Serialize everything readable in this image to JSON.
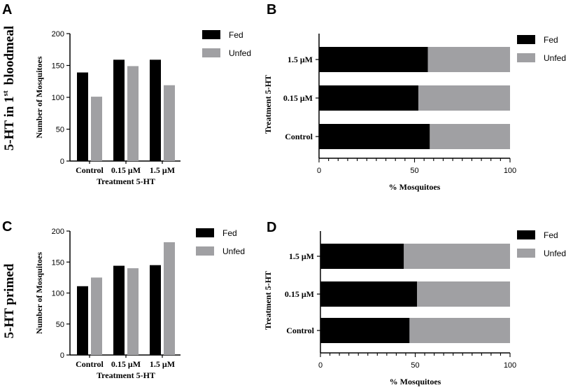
{
  "row_labels": {
    "top": "5-HT in 1",
    "top_sup": "st",
    "top_tail": "bloodmeal",
    "bottom": "5-HT primed"
  },
  "colors": {
    "fed": "#000000",
    "unfed": "#a0a0a3",
    "axis": "#000000"
  },
  "chart_data": [
    {
      "panel": "A",
      "type": "bar",
      "orientation": "vertical",
      "categories": [
        "Control",
        "0.15 μM",
        "1.5 μM"
      ],
      "series": [
        {
          "name": "Fed",
          "values": [
            139,
            159,
            159
          ]
        },
        {
          "name": "Unfed",
          "values": [
            101,
            149,
            119
          ]
        }
      ],
      "xlabel": "Treatment 5-HT",
      "ylabel": "Number of Mosquitoes",
      "ylim": [
        0,
        200
      ],
      "yticks": [
        0,
        50,
        100,
        150,
        200
      ],
      "legend": [
        "Fed",
        "Unfed"
      ],
      "legend_position": "top-right"
    },
    {
      "panel": "B",
      "type": "bar",
      "orientation": "horizontal-stacked",
      "categories": [
        "1.5 μM",
        "0.15 μM",
        "Control"
      ],
      "series": [
        {
          "name": "Fed",
          "values": [
            57,
            52,
            58
          ]
        },
        {
          "name": "Unfed",
          "values": [
            43,
            48,
            42
          ]
        }
      ],
      "xlabel": "% Mosquitoes",
      "ylabel": "Treatment 5-HT",
      "xlim": [
        0,
        100
      ],
      "xticks": [
        0,
        50,
        100
      ],
      "legend": [
        "Fed",
        "Unfed"
      ],
      "legend_position": "top-right"
    },
    {
      "panel": "C",
      "type": "bar",
      "orientation": "vertical",
      "categories": [
        "Control",
        "0.15 μM",
        "1.5 μM"
      ],
      "series": [
        {
          "name": "Fed",
          "values": [
            111,
            144,
            145
          ]
        },
        {
          "name": "Unfed",
          "values": [
            125,
            140,
            182
          ]
        }
      ],
      "xlabel": "Treatment 5-HT",
      "ylabel": "Number of Mosquitoes",
      "ylim": [
        0,
        200
      ],
      "yticks": [
        0,
        50,
        100,
        150,
        200
      ],
      "legend": [
        "Fed",
        "Unfed"
      ],
      "legend_position": "top-right"
    },
    {
      "panel": "D",
      "type": "bar",
      "orientation": "horizontal-stacked",
      "categories": [
        "1.5 μM",
        "0.15 μM",
        "Control"
      ],
      "series": [
        {
          "name": "Fed",
          "values": [
            44,
            51,
            47
          ]
        },
        {
          "name": "Unfed",
          "values": [
            56,
            49,
            53
          ]
        }
      ],
      "xlabel": "% Mosquitoes",
      "ylabel": "Treatment 5-HT",
      "xlim": [
        0,
        100
      ],
      "xticks": [
        0,
        50,
        100
      ],
      "legend": [
        "Fed",
        "Unfed"
      ],
      "legend_position": "top-right"
    }
  ]
}
